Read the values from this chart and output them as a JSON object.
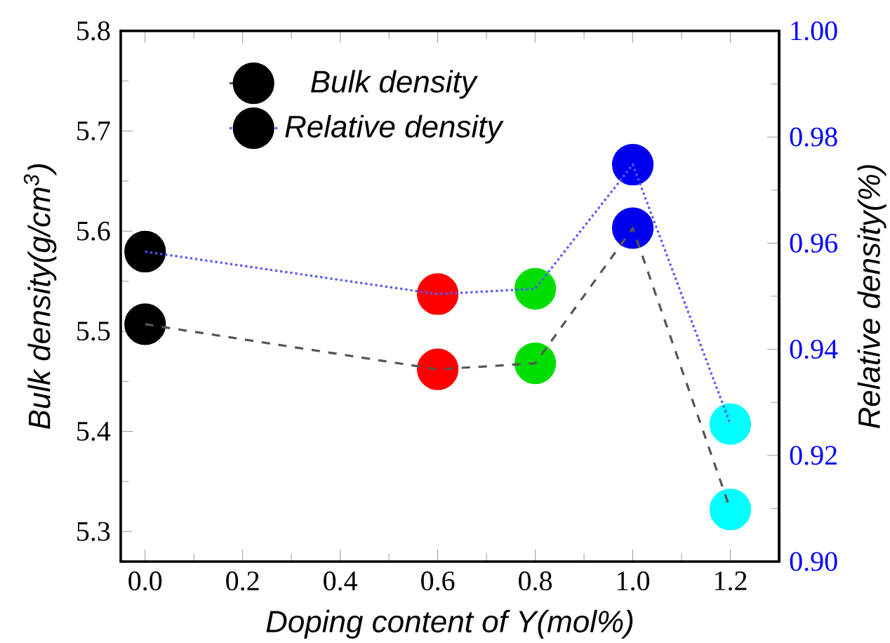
{
  "chart_data": {
    "type": "line",
    "xlabel": "Doping content of Y(mol%)",
    "ylabel": "Bulk density(g/cm$^{3}$)",
    "y2label": "Relative density(%)",
    "x": [
      0,
      0.6,
      0.8,
      1.0,
      1.2
    ],
    "xlim": [
      -0.05,
      1.3
    ],
    "xticks": [
      {
        "value": 0,
        "label": "0.0"
      },
      0.2,
      0.4,
      0.6,
      0.8,
      {
        "value": 1.0,
        "label": "1.0"
      },
      1.2
    ],
    "ylim": [
      5.27,
      5.8
    ],
    "yticks": [
      5.3,
      5.4,
      5.5,
      5.6,
      5.7,
      5.8
    ],
    "y2lim": [
      0.9,
      1.0
    ],
    "y2ticks": [
      {
        "value": 0.9,
        "label": "0.90"
      },
      0.92,
      0.94,
      0.96,
      0.98,
      {
        "value": 1.0,
        "label": "1.00"
      }
    ],
    "series": [
      {
        "name": "Bulk density",
        "color": "#555555",
        "line_style": "dashed",
        "colors": [
          "#000000",
          "#ff0000",
          "#00dd00",
          "#0000ee",
          "#00ffff"
        ],
        "values": [
          5.507,
          5.462,
          5.468,
          5.603,
          5.322
        ]
      },
      {
        "name": "Relative density",
        "color": "#5555ff",
        "line_style": "dotted",
        "axis": "y2",
        "colors": [
          "#000000",
          "#ff0000",
          "#00dd00",
          "#0000ee",
          "#00ffff"
        ],
        "values": [
          0.9584,
          0.9504,
          0.9514,
          0.9748,
          0.9259
        ]
      }
    ],
    "marker": "circle",
    "legend": "top left",
    "grid": false
  }
}
